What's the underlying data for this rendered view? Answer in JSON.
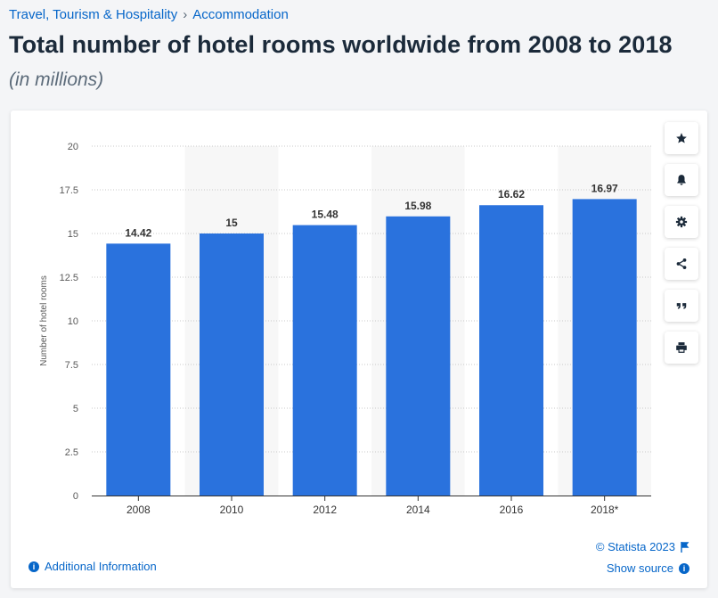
{
  "breadcrumb": {
    "category": "Travel, Tourism & Hospitality",
    "separator": "›",
    "subcategory": "Accommodation"
  },
  "header": {
    "title": "Total number of hotel rooms worldwide from 2008 to 2018",
    "subtitle": "(in millions)"
  },
  "toolbar": {
    "icons": [
      "star-icon",
      "bell-icon",
      "gear-icon",
      "share-icon",
      "quote-icon",
      "print-icon"
    ]
  },
  "footer": {
    "additional_info": "Additional Information",
    "copyright": "© Statista 2023",
    "show_source": "Show source",
    "info_glyph": "i"
  },
  "colors": {
    "bar": "#2a72dd",
    "link": "#0666c9",
    "title": "#1b2a3a",
    "band": "#f7f7f7"
  },
  "chart_data": {
    "type": "bar",
    "categories": [
      "2008",
      "2010",
      "2012",
      "2014",
      "2016",
      "2018*"
    ],
    "values": [
      14.42,
      15,
      15.48,
      15.98,
      16.62,
      16.97
    ],
    "value_labels": [
      "14.42",
      "15",
      "15.48",
      "15.98",
      "16.62",
      "16.97"
    ],
    "ylabel": "Number of hotel rooms",
    "ylim": [
      0,
      20
    ],
    "yticks": [
      0,
      2.5,
      5,
      7.5,
      10,
      12.5,
      15,
      17.5,
      20
    ],
    "ytick_labels": [
      "0",
      "2.5",
      "5",
      "7.5",
      "10",
      "12.5",
      "15",
      "17.5",
      "20"
    ],
    "grid": true,
    "alternating_bands": true,
    "legend": false
  }
}
